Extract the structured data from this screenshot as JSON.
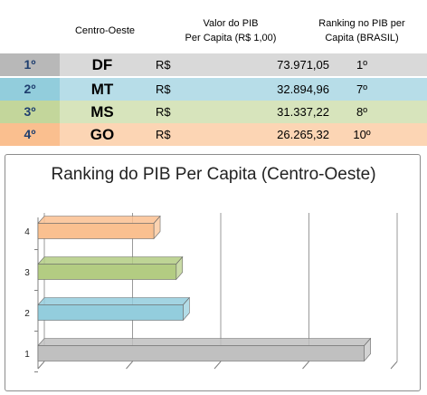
{
  "table": {
    "header": {
      "region": "Centro-Oeste",
      "value_line1": "Valor do PIB",
      "value_line2": "Per Capita (R$ 1,00)",
      "rank_line1": "Ranking no PIB per",
      "rank_line2": "Capita (BRASIL)"
    },
    "rows": [
      {
        "rank": "1º",
        "state": "DF",
        "currency": "R$",
        "value": "73.971,05",
        "brasil_rank": "1º",
        "color": "#d9d9d9",
        "rank_color": "#b8b8b8"
      },
      {
        "rank": "2º",
        "state": "MT",
        "currency": "R$",
        "value": "32.894,96",
        "brasil_rank": "7º",
        "color": "#b7dde8",
        "rank_color": "#92cddc"
      },
      {
        "rank": "3º",
        "state": "MS",
        "currency": "R$",
        "value": "31.337,22",
        "brasil_rank": "8º",
        "color": "#d7e4bc",
        "rank_color": "#c3d69b"
      },
      {
        "rank": "4º",
        "state": "GO",
        "currency": "R$",
        "value": "26.265,32",
        "brasil_rank": "10º",
        "color": "#fcd5b4",
        "rank_color": "#fabf8f"
      }
    ]
  },
  "chart_data": {
    "type": "bar",
    "orientation": "horizontal",
    "style": "3d",
    "title": "Ranking do PIB Per Capita (Centro-Oeste)",
    "categories": [
      "1",
      "2",
      "3",
      "4"
    ],
    "values": [
      73971.05,
      32894.96,
      31337.22,
      26265.32
    ],
    "bar_colors": [
      "#c0c0c0",
      "#93cddd",
      "#b3cc82",
      "#fac090"
    ],
    "xlim": [
      0,
      80000
    ],
    "grid": true,
    "legend": "none"
  }
}
